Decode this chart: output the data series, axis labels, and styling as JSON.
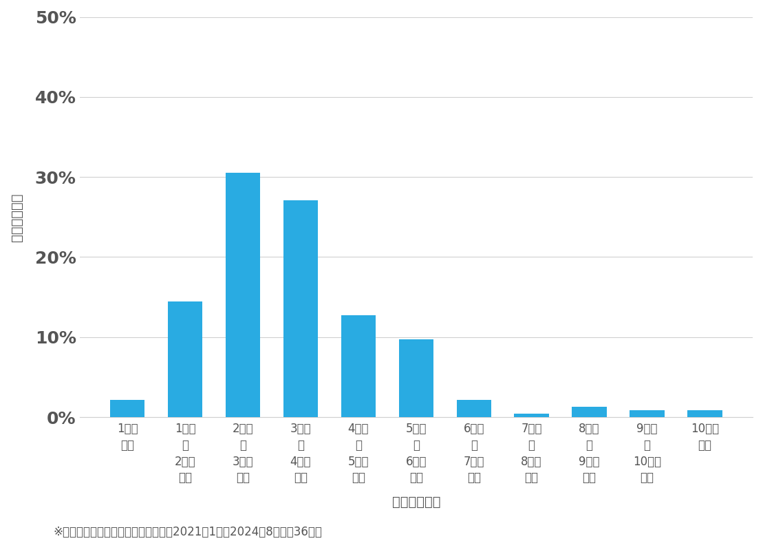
{
  "categories": [
    "1万円\n未満",
    "1万円\n～\n2万円\n未満",
    "2万円\n～\n3万円\n未満",
    "3万円\n～\n4万円\n未満",
    "4万円\n～\n5万円\n未満",
    "5万円\n～\n6万円\n未満",
    "6万円\n～\n7万円\n未満",
    "7万円\n～\n8万円\n未満",
    "8万円\n～\n9万円\n未満",
    "9万円\n～\n10万円\n未満",
    "10万円\n以上"
  ],
  "values": [
    2.12,
    14.41,
    30.51,
    27.12,
    12.71,
    9.75,
    2.12,
    0.42,
    1.27,
    0.85,
    0.85
  ],
  "bar_color": "#29ABE2",
  "ylabel": "価格帯の割合",
  "xlabel": "価格帯（円）",
  "ylim": [
    0,
    50
  ],
  "yticks": [
    0,
    10,
    20,
    30,
    40,
    50
  ],
  "ytick_labels": [
    "0%",
    "10%",
    "20%",
    "30%",
    "40%",
    "50%"
  ],
  "footnote": "※弊社受付の案件を対象に集計（期間2021年1月～2024年8月、訡36件）",
  "background_color": "#ffffff",
  "grid_color": "#d0d0d0",
  "text_color": "#555555",
  "ytick_fontsize": 18,
  "xlabel_fontsize": 14,
  "ylabel_fontsize": 14,
  "xtick_fontsize": 12,
  "footnote_fontsize": 12,
  "bar_width": 0.6
}
